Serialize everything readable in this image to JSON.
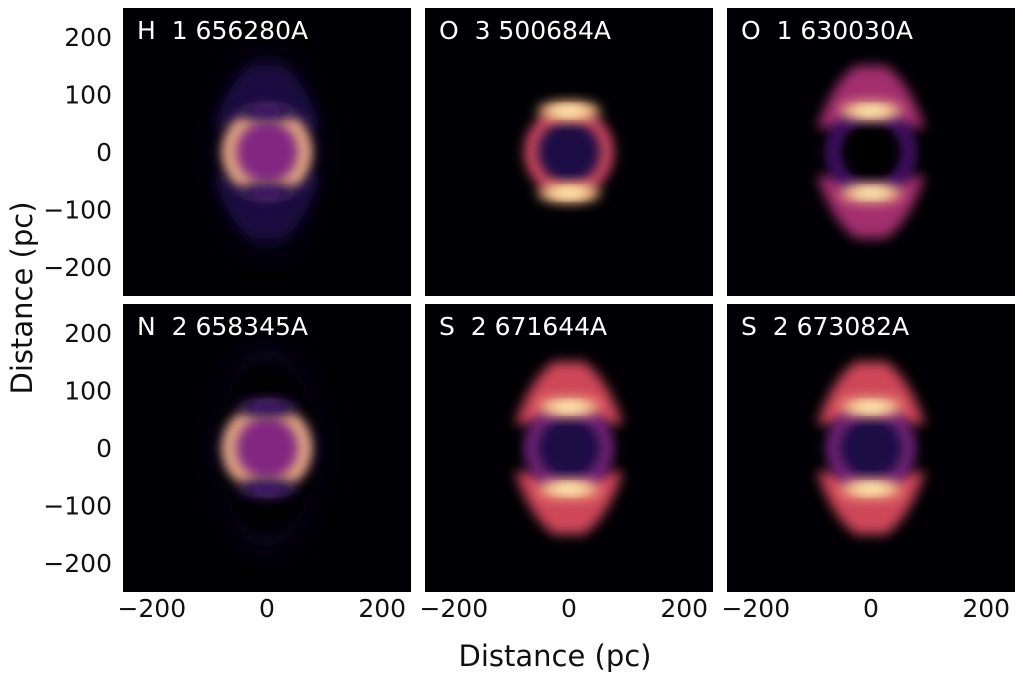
{
  "chart_data": {
    "type": "heatmap",
    "xlabel": "Distance (pc)",
    "ylabel": "Distance (pc)",
    "xlim": [
      -250,
      250
    ],
    "ylim": [
      -250,
      250
    ],
    "xticks": [
      -200,
      0,
      200
    ],
    "yticks": [
      200,
      100,
      0,
      -100,
      -200
    ],
    "xtick_labels": [
      "−200",
      "0",
      "200"
    ],
    "ytick_labels": [
      "200",
      "100",
      "0",
      "−100",
      "−200"
    ],
    "colormap": [
      "#000004",
      "#1c1044",
      "#4f127b",
      "#812581",
      "#b5367a",
      "#e55064",
      "#fb8761",
      "#fec287",
      "#fcfdbf"
    ],
    "panels": [
      {
        "label": "H  1 656280A",
        "shell_radius": 75,
        "center_level": 0.42,
        "rim_level": 0.9,
        "cap_level": 0.1,
        "lobe_level": 0.1,
        "halo_level": 0.1
      },
      {
        "label": "O  3 500684A",
        "shell_radius": 75,
        "center_level": 0.18,
        "rim_level": 0.6,
        "cap_level": 0.9,
        "lobe_level": 0.0,
        "halo_level": 0.0
      },
      {
        "label": "O  1 630030A",
        "shell_radius": 75,
        "center_level": 0.03,
        "rim_level": 0.3,
        "cap_level": 0.85,
        "lobe_level": 0.55,
        "halo_level": 0.0
      },
      {
        "label": "N  2 658345A",
        "shell_radius": 75,
        "center_level": 0.42,
        "rim_level": 0.9,
        "cap_level": 0.1,
        "lobe_level": 0.05,
        "halo_level": 0.08
      },
      {
        "label": "S  2 671644A",
        "shell_radius": 75,
        "center_level": 0.14,
        "rim_level": 0.4,
        "cap_level": 0.9,
        "lobe_level": 0.6,
        "halo_level": 0.0
      },
      {
        "label": "S  2 673082A",
        "shell_radius": 75,
        "center_level": 0.14,
        "rim_level": 0.4,
        "cap_level": 0.9,
        "lobe_level": 0.6,
        "halo_level": 0.0
      }
    ]
  }
}
